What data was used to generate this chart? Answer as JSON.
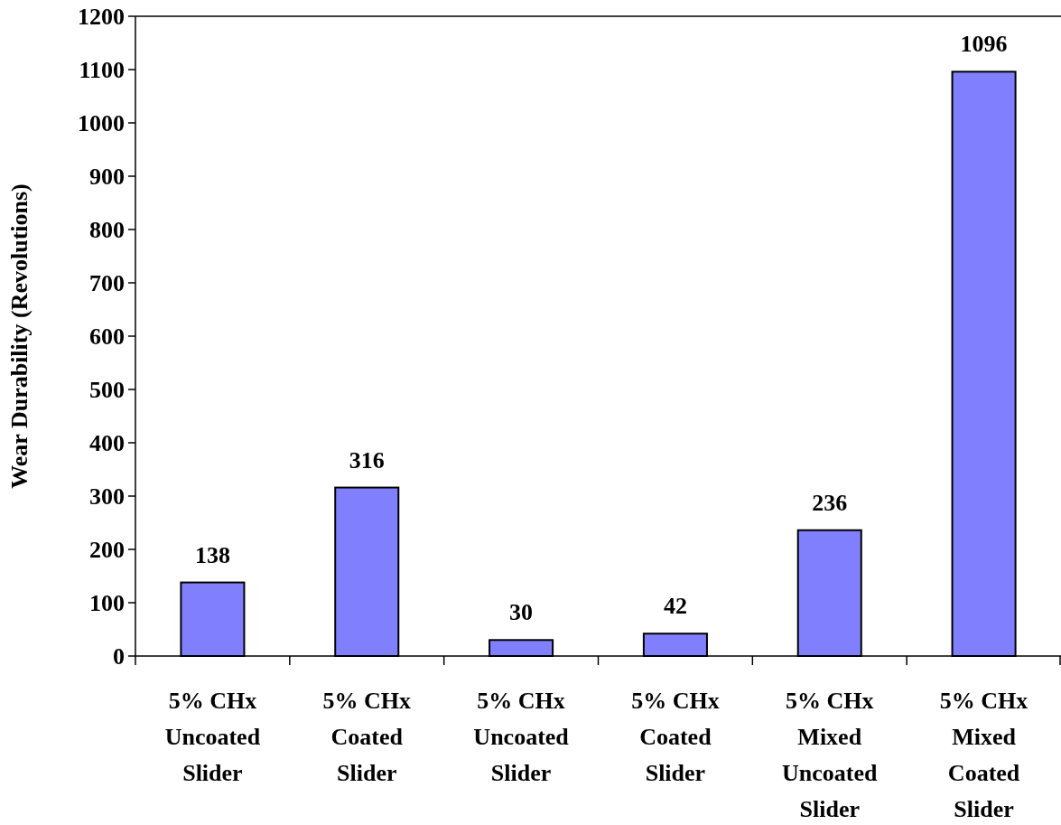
{
  "chart_data": {
    "type": "bar",
    "ylabel": "Wear Durability (Revolutions)",
    "categories": [
      "5% CHx\nUncoated\nSlider",
      "5% CHx\nCoated\nSlider",
      "5% CHx\nUncoated\nSlider",
      "5% CHx\nCoated\nSlider",
      "5% CHx\nMixed\nUncoated\nSlider",
      "5% CHx\nMixed\nCoated\nSlider"
    ],
    "values": [
      138,
      316,
      30,
      42,
      236,
      1096
    ],
    "color": "#8080ff",
    "ylim": [
      0,
      1200
    ],
    "yticks": [
      0,
      100,
      200,
      300,
      400,
      500,
      600,
      700,
      800,
      900,
      1000,
      1100,
      1200
    ],
    "data_labels": true,
    "grid": false
  }
}
